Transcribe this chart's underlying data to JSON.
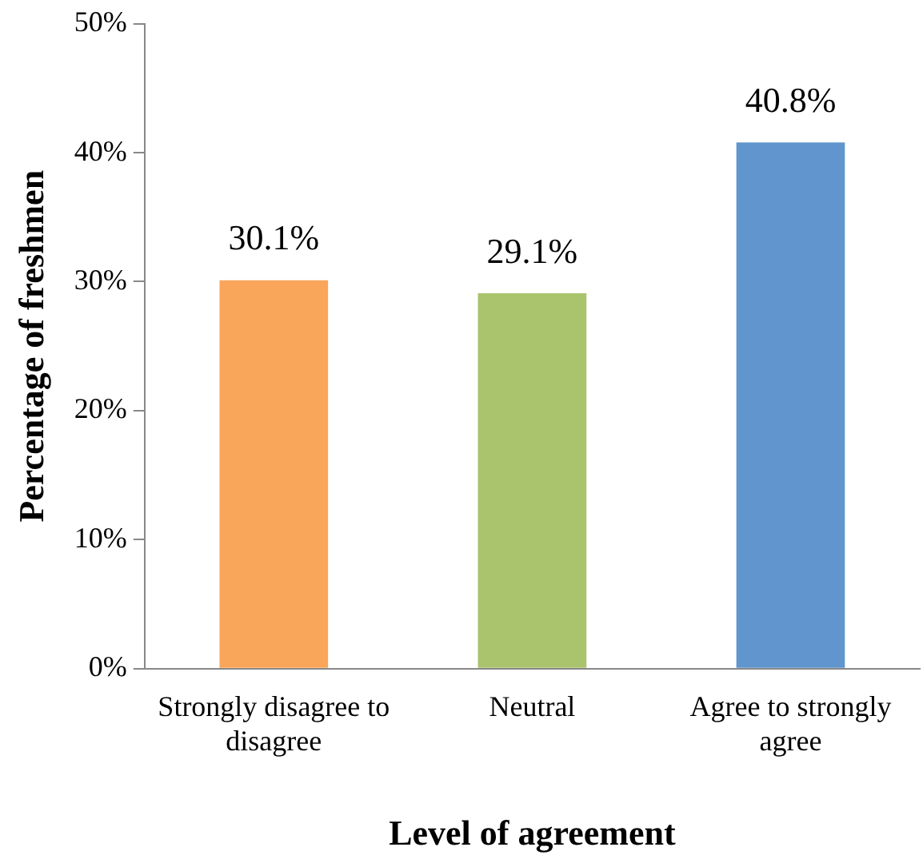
{
  "chart_data": {
    "type": "bar",
    "xlabel": "Level of agreement",
    "ylabel": "Percentage of freshmen",
    "categories": [
      "Strongly disagree to disagree",
      "Neutral",
      "Agree to strongly agree"
    ],
    "values": [
      30.1,
      29.1,
      40.8
    ],
    "colors": [
      "#f9a65a",
      "#a9c46d",
      "#6096cd"
    ],
    "value_labels": [
      "30.1%",
      "29.1%",
      "40.8%"
    ],
    "ylim": [
      0,
      50
    ],
    "yticks": [
      {
        "value": 0,
        "label": "0%"
      },
      {
        "value": 10,
        "label": "10%"
      },
      {
        "value": 20,
        "label": "20%"
      },
      {
        "value": 30,
        "label": "30%"
      },
      {
        "value": 40,
        "label": "40%"
      },
      {
        "value": 50,
        "label": "50%"
      }
    ],
    "grid": false,
    "legend": false
  }
}
